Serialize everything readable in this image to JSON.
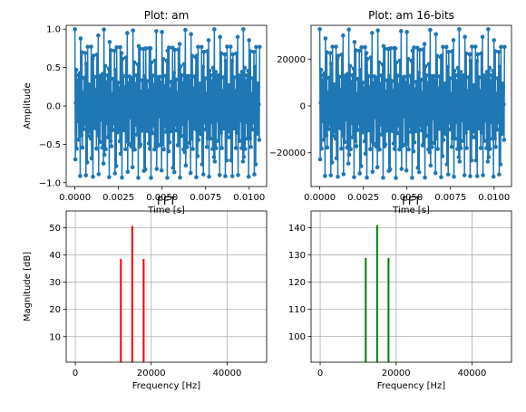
{
  "chart_data": [
    {
      "type": "line",
      "title": "Plot: am",
      "xlabel": "Time [s]",
      "ylabel": "Amplitude",
      "xlim": [
        -0.0005,
        0.011
      ],
      "ylim": [
        -1.05,
        1.05
      ],
      "xticks": [
        0.0,
        0.0025,
        0.005,
        0.0075,
        0.01
      ],
      "xtick_labels": [
        "0.0000",
        "0.0025",
        "0.0050",
        "0.0075",
        "0.0100"
      ],
      "yticks": [
        -1.0,
        -0.5,
        0.0,
        0.5,
        1.0
      ],
      "ytick_labels": [
        "−1.0",
        "−0.5",
        "0.0",
        "0.5",
        "1.0"
      ],
      "grid": false,
      "marker": "o",
      "color": "#1f77b4",
      "signal": {
        "t_start": 0.0,
        "t_end": 0.0106,
        "carrier_hz": 15000,
        "modulation_hz": 3000,
        "modulation_index": 0.5,
        "peak": 1.0
      }
    },
    {
      "type": "line",
      "title": "Plot: am 16-bits",
      "xlabel": "Time [s]",
      "ylabel": "",
      "xlim": [
        -0.0005,
        0.011
      ],
      "ylim": [
        -34400,
        34400
      ],
      "xticks": [
        0.0,
        0.0025,
        0.005,
        0.0075,
        0.01
      ],
      "xtick_labels": [
        "0.0000",
        "0.0025",
        "0.0050",
        "0.0075",
        "0.0100"
      ],
      "yticks": [
        -20000,
        0,
        20000
      ],
      "ytick_labels": [
        "−20000",
        "0",
        "20000"
      ],
      "grid": false,
      "marker": "o",
      "color": "#1f77b4",
      "signal": {
        "t_start": 0.0,
        "t_end": 0.0106,
        "carrier_hz": 15000,
        "modulation_hz": 3000,
        "modulation_index": 0.5,
        "peak": 32767
      }
    },
    {
      "type": "bar",
      "title": "FFT",
      "xlabel": "Frequency [Hz]",
      "ylabel": "Magnitude [dB]",
      "xlim": [
        -2400,
        50400
      ],
      "ylim": [
        0.6,
        56.2
      ],
      "xticks": [
        0,
        20000,
        40000
      ],
      "xtick_labels": [
        "0",
        "20000",
        "40000"
      ],
      "yticks": [
        10,
        20,
        30,
        40,
        50
      ],
      "ytick_labels": [
        "10",
        "20",
        "30",
        "40",
        "50"
      ],
      "grid": true,
      "color": "#ff0000",
      "baseline": 0.6,
      "x": [
        12000,
        15000,
        18000
      ],
      "values": [
        38.6,
        50.7,
        38.6
      ]
    },
    {
      "type": "bar",
      "title": "FFT",
      "xlabel": "Frequency [Hz]",
      "ylabel": "",
      "xlim": [
        -2400,
        50400
      ],
      "ylim": [
        90.5,
        146.2
      ],
      "xticks": [
        0,
        20000,
        40000
      ],
      "xtick_labels": [
        "0",
        "20000",
        "40000"
      ],
      "yticks": [
        100,
        110,
        120,
        130,
        140
      ],
      "ytick_labels": [
        "100",
        "110",
        "120",
        "130",
        "140"
      ],
      "grid": true,
      "color": "#008000",
      "baseline": 90.5,
      "x": [
        12000,
        15000,
        18000
      ],
      "values": [
        128.9,
        141.0,
        128.9
      ]
    }
  ]
}
